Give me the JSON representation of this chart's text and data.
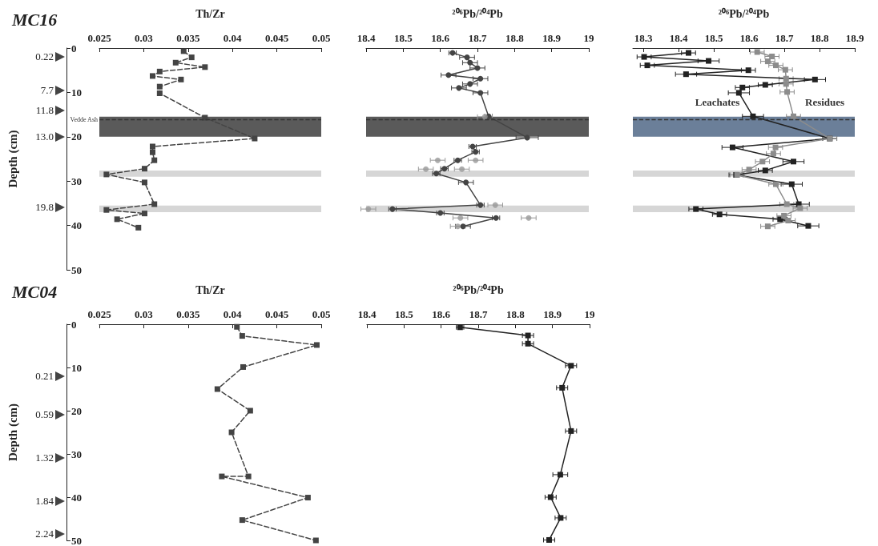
{
  "chart_data": [
    {
      "type": "line",
      "title": "MC16",
      "xlabel": "Th/Zr",
      "ylabel": "Depth (cm)",
      "xlim": [
        0.025,
        0.05
      ],
      "xticks": [
        0.025,
        0.03,
        0.035,
        0.04,
        0.045,
        0.05
      ],
      "ylim": [
        50,
        0
      ],
      "yticks": [
        0,
        10,
        20,
        30,
        40,
        50
      ],
      "grid": false,
      "legend": false,
      "marker": "square",
      "line_style": "dashed",
      "series": [
        {
          "color": "#444444",
          "x": [
            0.0345,
            0.0354,
            0.0336,
            0.0369,
            0.0318,
            0.031,
            0.0342,
            0.0318,
            0.0318,
            0.0369,
            0.0425,
            0.031,
            0.031,
            0.0312,
            0.0301,
            0.0258,
            0.0301,
            0.0312,
            0.0258,
            0.0301,
            0.027,
            0.0294
          ],
          "values": [
            0.7,
            2.1,
            3.3,
            4.3,
            5.3,
            6.3,
            7.1,
            8.7,
            10.2,
            15.7,
            20.4,
            22.2,
            23.5,
            25.3,
            27.2,
            28.5,
            30.3,
            35.2,
            36.5,
            37.3,
            38.6,
            40.5
          ]
        }
      ],
      "bands": [
        {
          "axis": "y",
          "from": 15.5,
          "to": 20,
          "color": "#5a5a5a"
        },
        {
          "axis": "y",
          "from": 27.6,
          "to": 29,
          "color": "#d6d6d6"
        },
        {
          "axis": "y",
          "from": 35.5,
          "to": 37,
          "color": "#d6d6d6"
        }
      ],
      "ref_lines": [
        {
          "axis": "y",
          "value": 16.2,
          "label": "Vedde Ash",
          "color": "#333333",
          "line_style": "dashed"
        }
      ],
      "annotations": [
        "0.22",
        "7.7",
        "11.8",
        "13.0",
        "19.8"
      ]
    },
    {
      "type": "line",
      "xlabel": "²⁰⁶Pb/²⁰⁴Pb",
      "xlim": [
        18.4,
        19
      ],
      "xticks": [
        18.4,
        18.5,
        18.6,
        18.7,
        18.8,
        18.9,
        19
      ],
      "ylim": [
        50,
        0
      ],
      "tick_labels": "x",
      "grid": false,
      "legend": false,
      "marker": "circle",
      "line_style": "solid",
      "series": [
        {
          "color": "#444444",
          "x": [
            18.633,
            18.672,
            18.68,
            18.7,
            18.622,
            18.708,
            18.68,
            18.65,
            18.708,
            18.73,
            18.834,
            18.687,
            18.695,
            18.647,
            18.611,
            18.589,
            18.669,
            18.708,
            18.471,
            18.6,
            18.75,
            18.661
          ],
          "values": [
            1.1,
            2.1,
            3.3,
            4.5,
            6.1,
            6.9,
            8.1,
            9,
            10.1,
            15.4,
            20.2,
            22.2,
            23.4,
            25.3,
            27.2,
            28.3,
            30.3,
            35.4,
            36.3,
            37.2,
            38.3,
            40.2
          ],
          "xerrors": [
            0.01,
            0.02,
            0.02,
            0.02,
            0.02,
            0.02,
            0.02,
            0.02,
            0.02,
            0.01,
            0.03,
            0.01,
            0.01,
            0.01,
            0.01,
            0.01,
            0.02,
            0.01,
            0.01,
            0.01,
            0.01,
            0.02
          ]
        },
        {
          "type": "scatter",
          "color": "#999999",
          "x": [
            18.593,
            18.695,
            18.561,
            18.658,
            18.72,
            18.748,
            18.406,
            18.654,
            18.838,
            18.647
          ],
          "values": [
            25.3,
            25.3,
            27.3,
            27.3,
            15.5,
            35.4,
            36.3,
            38.3,
            38.3,
            40.2
          ],
          "xerrors": [
            0.02,
            0.02,
            0.02,
            0.02,
            0.02,
            0.02,
            0.02,
            0.02,
            0.02,
            0.02
          ]
        }
      ],
      "bands": [
        {
          "axis": "y",
          "from": 15.5,
          "to": 20,
          "color": "#5a5a5a"
        },
        {
          "axis": "y",
          "from": 27.6,
          "to": 29,
          "color": "#d6d6d6"
        },
        {
          "axis": "y",
          "from": 35.5,
          "to": 37,
          "color": "#d6d6d6"
        }
      ],
      "ref_lines": [
        {
          "axis": "y",
          "value": 16.2,
          "color": "#333333",
          "line_style": "dashed"
        }
      ]
    },
    {
      "type": "line",
      "xlabel": "²⁰⁶Pb/²⁰⁴Pb",
      "xlim": [
        18.27,
        18.9
      ],
      "xticks": [
        18.3,
        18.4,
        18.5,
        18.6,
        18.7,
        18.8,
        18.9
      ],
      "ylim": [
        50,
        0
      ],
      "tick_labels": "x",
      "grid": false,
      "legend": false,
      "marker": "square",
      "line_style": "solid",
      "series": [
        {
          "name": "Leachates",
          "color": "#222222",
          "x": [
            18.428,
            18.302,
            18.485,
            18.311,
            18.598,
            18.421,
            18.787,
            18.646,
            18.581,
            18.571,
            18.611,
            18.829,
            18.553,
            18.726,
            18.646,
            18.563,
            18.721,
            18.741,
            18.449,
            18.516,
            18.688,
            18.768
          ],
          "values": [
            1.1,
            2,
            2.9,
            3.9,
            5,
            5.9,
            7.1,
            8.3,
            8.9,
            10.1,
            15.4,
            20.4,
            22.4,
            25.6,
            27.6,
            28.6,
            30.7,
            35.2,
            36.3,
            37.5,
            38.6,
            40.1
          ],
          "xerrors": [
            0.02,
            0.02,
            0.03,
            0.02,
            0.02,
            0.03,
            0.03,
            0.02,
            0.02,
            0.03,
            0.03,
            0.02,
            0.03,
            0.03,
            0.02,
            0.02,
            0.03,
            0.03,
            0.02,
            0.02,
            0.02,
            0.03
          ]
        },
        {
          "name": "Residues",
          "color": "#8c8c8c",
          "x": [
            18.623,
            18.665,
            18.653,
            18.676,
            18.703,
            18.705,
            18.705,
            18.708,
            18.726,
            18.829,
            18.675,
            18.669,
            18.638,
            18.6,
            18.566,
            18.676,
            18.707,
            18.745,
            18.699,
            18.711,
            18.653
          ],
          "values": [
            0.9,
            1.9,
            3,
            3.9,
            4.9,
            6.9,
            8.1,
            9.9,
            15.4,
            20.4,
            22.4,
            23.8,
            25.6,
            27.4,
            28.6,
            30.7,
            35.2,
            36.1,
            37.8,
            38.9,
            40.2
          ],
          "xerrors": [
            0.02,
            0.02,
            0.02,
            0.02,
            0.02,
            0.02,
            0.02,
            0.02,
            0.02,
            0.02,
            0.02,
            0.02,
            0.02,
            0.02,
            0.02,
            0.02,
            0.02,
            0.02,
            0.02,
            0.02,
            0.02
          ]
        }
      ],
      "bands": [
        {
          "axis": "y",
          "from": 15.5,
          "to": 20,
          "color": "#6b7f99"
        },
        {
          "axis": "y",
          "from": 27.6,
          "to": 29,
          "color": "#d6d6d6"
        },
        {
          "axis": "y",
          "from": 35.5,
          "to": 37,
          "color": "#d6d6d6"
        }
      ],
      "ref_lines": [
        {
          "axis": "y",
          "value": 16.2,
          "color": "#333333",
          "line_style": "dashed"
        }
      ]
    },
    {
      "type": "line",
      "title": "MC04",
      "xlabel": "Th/Zr",
      "ylabel": "Depth (cm)",
      "xlim": [
        0.025,
        0.05
      ],
      "xticks": [
        0.025,
        0.03,
        0.035,
        0.04,
        0.045,
        0.05
      ],
      "ylim": [
        50,
        0
      ],
      "yticks": [
        0,
        10,
        20,
        30,
        40,
        50
      ],
      "grid": false,
      "legend": false,
      "marker": "square",
      "line_style": "dashed",
      "series": [
        {
          "color": "#444444",
          "x": [
            0.0405,
            0.0411,
            0.0495,
            0.0412,
            0.0383,
            0.042,
            0.0399,
            0.0418,
            0.0388,
            0.0485,
            0.0411,
            0.0494
          ],
          "values": [
            0.6,
            2.7,
            4.8,
            9.9,
            15,
            20,
            25,
            35.2,
            35.2,
            40.1,
            45.3,
            50
          ]
        }
      ],
      "annotations": [
        "0.21",
        "0.59",
        "1.32",
        "1.84",
        "2.24"
      ]
    },
    {
      "type": "line",
      "xlabel": "²⁰⁶Pb/²⁰⁴Pb",
      "xlim": [
        18.4,
        19
      ],
      "xticks": [
        18.4,
        18.5,
        18.6,
        18.7,
        18.8,
        18.9,
        19
      ],
      "ylim": [
        50,
        0
      ],
      "tick_labels": "x",
      "grid": false,
      "legend": false,
      "marker": "square",
      "line_style": "solid",
      "series": [
        {
          "color": "#222222",
          "x": [
            18.651,
            18.834,
            18.834,
            18.95,
            18.926,
            18.95,
            18.921,
            18.895,
            18.922,
            18.891
          ],
          "values": [
            0.7,
            2.6,
            4.5,
            9.6,
            14.7,
            24.7,
            34.8,
            40,
            44.8,
            49.9
          ],
          "xerrors": [
            0.01,
            0.015,
            0.015,
            0.015,
            0.015,
            0.015,
            0.02,
            0.015,
            0.015,
            0.015
          ]
        }
      ]
    }
  ]
}
